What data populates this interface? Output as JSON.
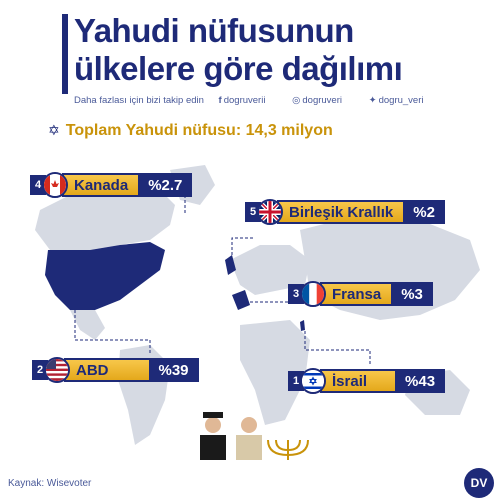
{
  "title": {
    "line1": "Yahudi nüfusunun",
    "line2": "ülkelere göre dağılımı"
  },
  "social": {
    "follow_text": "Daha fazlası için bizi takip edin",
    "facebook": "dogruverii",
    "instagram": "dogruveri",
    "twitter": "dogru_veri"
  },
  "total": {
    "text": "Toplam Yahudi nüfusu: 14,3 milyon"
  },
  "countries": [
    {
      "rank": "1",
      "name": "İsrail",
      "percent": "%43",
      "flag_icon": "israel-flag-icon"
    },
    {
      "rank": "2",
      "name": "ABD",
      "percent": "%39",
      "flag_icon": "usa-flag-icon"
    },
    {
      "rank": "3",
      "name": "Fransa",
      "percent": "%3",
      "flag_icon": "france-flag-icon"
    },
    {
      "rank": "4",
      "name": "Kanada",
      "percent": "%2.7",
      "flag_icon": "canada-flag-icon"
    },
    {
      "rank": "5",
      "name": "Birleşik Krallık",
      "percent": "%2",
      "flag_icon": "uk-flag-icon"
    }
  ],
  "source": {
    "text": "Kaynak: Wisevoter"
  },
  "logo": {
    "text": "DV"
  },
  "colors": {
    "navy": "#1e2a78",
    "gold": "#e4a81b",
    "map_land": "#d6dae3",
    "highlight": "#1e2a78"
  }
}
